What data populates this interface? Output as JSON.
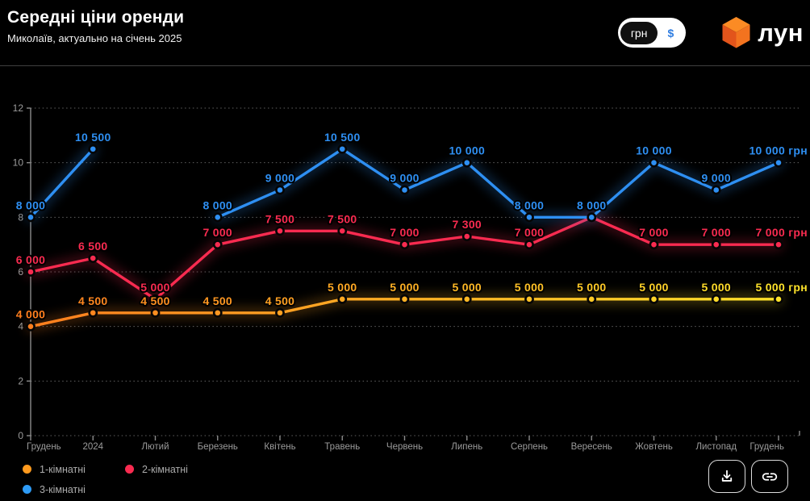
{
  "header": {
    "title": "Середні ціни оренди",
    "subtitle": "Миколаїв, актуально на січень 2025",
    "currency_toggle": {
      "options": [
        "грн",
        "$"
      ],
      "selected": "грн"
    },
    "logo_text": "лун"
  },
  "chart_data": {
    "type": "line",
    "title": "Середні ціни оренди — Миколаїв, актуально на січень 2025",
    "x_categories": [
      "Грудень",
      "2024",
      "Лютий",
      "Березень",
      "Квітень",
      "Травень",
      "Червень",
      "Липень",
      "Серпень",
      "Вересень",
      "Жовтень",
      "Листопад",
      "Грудень"
    ],
    "y_axis": {
      "ticks": [
        0,
        2,
        4,
        6,
        8,
        10,
        12
      ],
      "scale": "тисячі грн",
      "range": [
        0,
        12000
      ]
    },
    "grid": "dotted-horizontal",
    "legend_position": "bottom-left",
    "series": [
      {
        "name": "1-кімнатні",
        "color": "#FF7E1E",
        "color_end": "#FFE32A",
        "values": [
          4000,
          4500,
          4500,
          4500,
          4500,
          5000,
          5000,
          5000,
          5000,
          5000,
          5000,
          5000,
          5000
        ],
        "labels": [
          "4 000",
          "4 500",
          "4 500",
          "4 500",
          "4 500",
          "5 000",
          "5 000",
          "5 000",
          "5 000",
          "5 000",
          "5 000",
          "5 000",
          "5 000 грн"
        ]
      },
      {
        "name": "2-кімнатні",
        "color": "#F92B50",
        "values": [
          6000,
          6500,
          5000,
          7000,
          7500,
          7500,
          7000,
          7300,
          7000,
          8000,
          7000,
          7000,
          7000
        ],
        "labels": [
          "6 000",
          "6 500",
          "5 000",
          "7 000",
          "7 500",
          "7 500",
          "7 000",
          "7 300",
          "7 000",
          null,
          "7 000",
          "7 000",
          "7 000 грн"
        ]
      },
      {
        "name": "3-кімнатні",
        "color": "#2E8FF2",
        "values": [
          8000,
          10500,
          null,
          8000,
          9000,
          10500,
          9000,
          10000,
          8000,
          8000,
          10000,
          9000,
          10000
        ],
        "labels": [
          "8 000",
          "10 500",
          null,
          "8 000",
          "9 000",
          "10 500",
          "9 000",
          "10 000",
          "8 000",
          "8 000",
          "10 000",
          "9 000",
          "10 000 грн"
        ]
      }
    ]
  },
  "legend": {
    "items": [
      {
        "label": "1-кімнатні",
        "color": "#FF9A1E"
      },
      {
        "label": "2-кімнатні",
        "color": "#F92B50"
      },
      {
        "label": "3-кімнатні",
        "color": "#2E9BF5"
      }
    ]
  },
  "actions": {
    "download_icon": "download-icon",
    "link_icon": "link-icon"
  }
}
